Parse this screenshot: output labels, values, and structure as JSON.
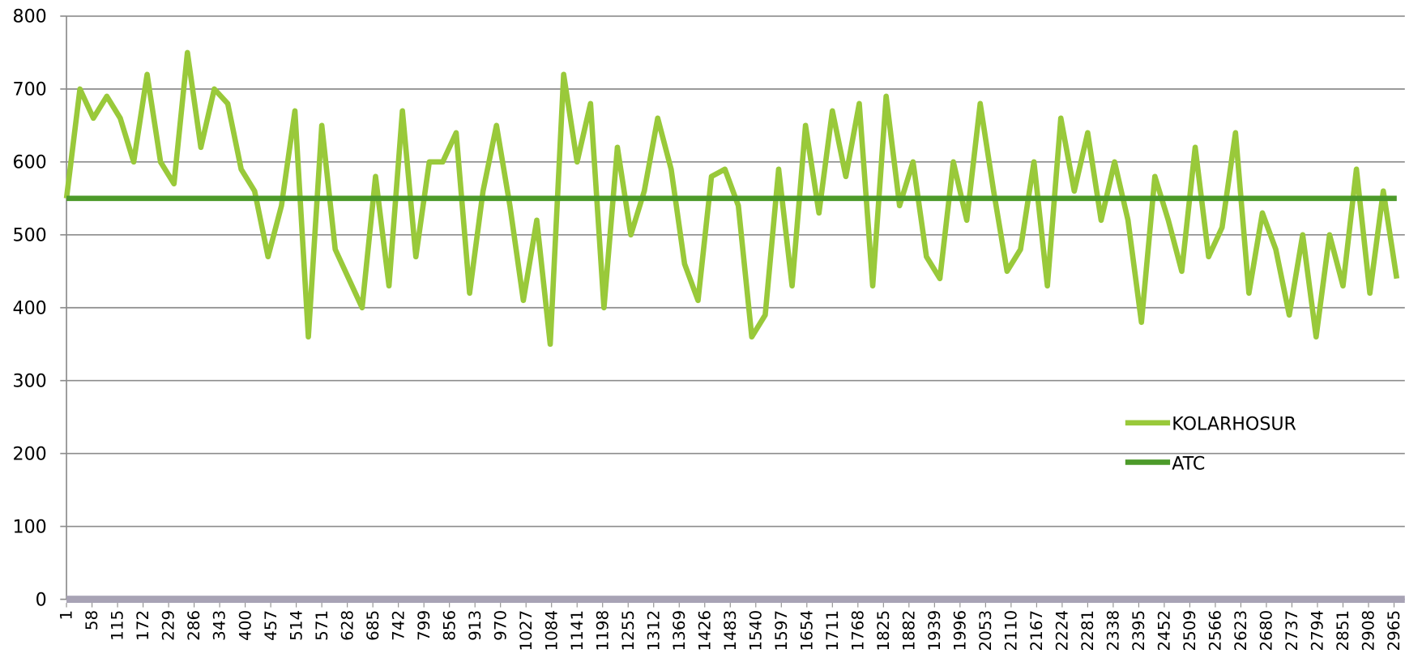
{
  "chart_data": {
    "type": "line",
    "series": [
      {
        "name": "KOLARHOSUR",
        "color": "#99c93a",
        "x": [
          1,
          31,
          61,
          91,
          121,
          151,
          181,
          211,
          241,
          271,
          301,
          331,
          361,
          391,
          421,
          451,
          481,
          511,
          541,
          571,
          601,
          631,
          661,
          691,
          721,
          751,
          781,
          811,
          841,
          871,
          901,
          931,
          961,
          991,
          1021,
          1051,
          1081,
          1111,
          1141,
          1171,
          1201,
          1231,
          1261,
          1291,
          1321,
          1351,
          1381,
          1411,
          1441,
          1471,
          1501,
          1531,
          1561,
          1591,
          1621,
          1651,
          1681,
          1711,
          1741,
          1771,
          1801,
          1831,
          1861,
          1891,
          1921,
          1951,
          1981,
          2011,
          2041,
          2071,
          2101,
          2131,
          2161,
          2191,
          2221,
          2251,
          2281,
          2311,
          2341,
          2371,
          2401,
          2431,
          2461,
          2491,
          2521,
          2551,
          2581,
          2611,
          2641,
          2671,
          2701,
          2731,
          2761,
          2791,
          2821,
          2851,
          2881,
          2911,
          2941,
          2971
        ],
        "values": [
          550,
          700,
          660,
          690,
          660,
          600,
          720,
          600,
          570,
          750,
          620,
          700,
          680,
          590,
          560,
          470,
          540,
          670,
          360,
          650,
          480,
          440,
          400,
          580,
          430,
          670,
          470,
          600,
          600,
          640,
          420,
          560,
          650,
          540,
          410,
          520,
          350,
          720,
          600,
          680,
          400,
          620,
          500,
          560,
          660,
          590,
          460,
          410,
          580,
          590,
          540,
          360,
          390,
          590,
          430,
          650,
          530,
          670,
          580,
          680,
          430,
          690,
          540,
          600,
          470,
          440,
          600,
          520,
          680,
          560,
          450,
          480,
          600,
          430,
          660,
          560,
          640,
          520,
          600,
          520,
          380,
          580,
          520,
          450,
          620,
          470,
          510,
          640,
          420,
          530,
          480,
          390,
          500,
          360,
          500,
          430,
          590,
          420,
          560,
          440
        ]
      },
      {
        "name": "ATC",
        "color": "#4c9a2a",
        "x": [
          1,
          2971
        ],
        "values": [
          550,
          550
        ]
      }
    ],
    "xlim": [
      1,
      2971
    ],
    "xticks": [
      1,
      58,
      115,
      172,
      229,
      286,
      343,
      400,
      457,
      514,
      571,
      628,
      685,
      742,
      799,
      856,
      913,
      970,
      1027,
      1084,
      1141,
      1198,
      1255,
      1312,
      1369,
      1426,
      1483,
      1540,
      1597,
      1654,
      1711,
      1768,
      1825,
      1882,
      1939,
      1996,
      2053,
      2110,
      2167,
      2224,
      2281,
      2338,
      2395,
      2452,
      2509,
      2566,
      2623,
      2680,
      2737,
      2794,
      2851,
      2908,
      2965
    ],
    "ylim": [
      0,
      800
    ],
    "yticks": [
      0,
      100,
      200,
      300,
      400,
      500,
      600,
      700,
      800
    ],
    "grid": true,
    "legend": "right"
  }
}
